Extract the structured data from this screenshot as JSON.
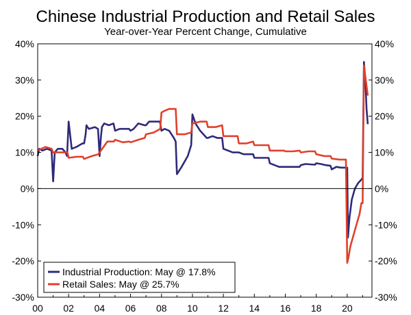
{
  "chart_data": {
    "type": "line",
    "title": "Chinese Industrial Production and Retail Sales",
    "subtitle": "Year-over-Year Percent Change, Cumulative",
    "xlabel": "",
    "ylabel": "",
    "xlim": [
      2000,
      2021.6
    ],
    "ylim": [
      -30,
      40
    ],
    "y_ticks": [
      40,
      30,
      20,
      10,
      0,
      -10,
      -20,
      -30
    ],
    "y_tick_labels": [
      "40%",
      "30%",
      "20%",
      "10%",
      "0%",
      "-10%",
      "-20%",
      "-30%"
    ],
    "x_ticks": [
      2000,
      2002,
      2004,
      2006,
      2008,
      2010,
      2012,
      2014,
      2016,
      2018,
      2020
    ],
    "x_tick_labels": [
      "00",
      "02",
      "04",
      "06",
      "08",
      "10",
      "12",
      "14",
      "16",
      "18",
      "20"
    ],
    "grid": false,
    "legend_position": "bottom-left",
    "series": [
      {
        "name": "Industrial Production",
        "legend_label": "Industrial Production: May @ 17.8%",
        "color": "#2e2a78",
        "x": [
          2000.0,
          2000.1,
          2000.3,
          2000.6,
          2000.9,
          2001.0,
          2001.1,
          2001.3,
          2001.6,
          2001.8,
          2001.9,
          2002.0,
          2002.2,
          2002.5,
          2002.9,
          2003.0,
          2003.1,
          2003.15,
          2003.3,
          2003.7,
          2003.9,
          2004.0,
          2004.08,
          2004.15,
          2004.3,
          2004.6,
          2004.9,
          2005.0,
          2005.3,
          2005.6,
          2005.9,
          2006.0,
          2006.2,
          2006.5,
          2006.9,
          2007.0,
          2007.2,
          2007.5,
          2007.9,
          2008.0,
          2008.2,
          2008.5,
          2008.8,
          2008.92,
          2009.0,
          2009.3,
          2009.7,
          2009.92,
          2010.0,
          2010.2,
          2010.5,
          2010.92,
          2011.0,
          2011.3,
          2011.6,
          2011.92,
          2012.0,
          2012.3,
          2012.6,
          2012.92,
          2013.0,
          2013.3,
          2013.6,
          2013.92,
          2014.0,
          2014.3,
          2014.6,
          2014.92,
          2015.0,
          2015.3,
          2015.6,
          2015.92,
          2016.0,
          2016.3,
          2016.6,
          2016.92,
          2017.0,
          2017.3,
          2017.6,
          2017.92,
          2018.0,
          2018.3,
          2018.6,
          2018.92,
          2019.0,
          2019.3,
          2019.6,
          2019.92,
          2020.0,
          2020.05,
          2020.15,
          2020.3,
          2020.5,
          2020.7,
          2020.92,
          2021.0,
          2021.08,
          2021.17,
          2021.25,
          2021.33
        ],
        "values": [
          9.0,
          11.0,
          10.5,
          11.0,
          10.5,
          2.0,
          10.0,
          11.0,
          11.0,
          10.0,
          9.0,
          18.5,
          11.0,
          11.5,
          12.5,
          12.5,
          15.0,
          17.5,
          16.5,
          17.0,
          16.5,
          9.0,
          14.0,
          17.0,
          18.0,
          17.5,
          18.0,
          16.0,
          16.5,
          16.5,
          16.5,
          16.0,
          16.5,
          18.0,
          17.5,
          17.5,
          18.5,
          18.5,
          18.5,
          16.0,
          16.5,
          16.0,
          14.0,
          13.0,
          4.0,
          6.0,
          9.0,
          12.0,
          20.5,
          18.0,
          16.0,
          14.0,
          14.0,
          14.5,
          14.0,
          14.0,
          11.0,
          10.5,
          10.0,
          10.0,
          10.0,
          9.5,
          9.5,
          9.5,
          8.5,
          8.5,
          8.5,
          8.5,
          7.0,
          6.5,
          6.0,
          6.0,
          6.0,
          6.0,
          6.0,
          6.0,
          6.5,
          6.8,
          6.7,
          6.6,
          7.0,
          6.8,
          6.5,
          6.3,
          5.3,
          6.0,
          5.8,
          5.8,
          5.8,
          -13.5,
          -8.0,
          -3.0,
          0.0,
          1.5,
          2.5,
          3.0,
          35.0,
          30.0,
          22.0,
          17.8
        ]
      },
      {
        "name": "Retail Sales",
        "legend_label": "Retail Sales: May @ 25.7%",
        "color": "#e0402a",
        "x": [
          2000.0,
          2000.5,
          2000.9,
          2001.0,
          2001.5,
          2001.92,
          2002.0,
          2002.5,
          2002.92,
          2003.0,
          2003.5,
          2003.92,
          2004.0,
          2004.5,
          2004.92,
          2005.0,
          2005.5,
          2005.92,
          2006.0,
          2006.5,
          2006.92,
          2007.0,
          2007.5,
          2007.92,
          2008.0,
          2008.2,
          2008.5,
          2008.92,
          2009.0,
          2009.5,
          2009.92,
          2010.0,
          2010.5,
          2010.92,
          2011.0,
          2011.5,
          2011.92,
          2012.0,
          2012.5,
          2012.92,
          2013.0,
          2013.5,
          2013.92,
          2014.0,
          2014.5,
          2014.92,
          2015.0,
          2015.5,
          2015.92,
          2016.0,
          2016.5,
          2016.92,
          2017.0,
          2017.5,
          2017.92,
          2018.0,
          2018.5,
          2018.92,
          2019.0,
          2019.5,
          2019.92,
          2020.0,
          2020.08,
          2020.2,
          2020.5,
          2020.8,
          2020.92,
          2021.0,
          2021.08,
          2021.2,
          2021.33
        ],
        "values": [
          10.5,
          11.5,
          11.0,
          10.0,
          10.0,
          10.0,
          8.5,
          8.8,
          8.8,
          8.2,
          9.0,
          9.5,
          10.0,
          13.0,
          13.0,
          13.5,
          12.8,
          13.0,
          12.8,
          13.5,
          14.0,
          15.0,
          15.5,
          16.5,
          21.0,
          21.5,
          22.0,
          22.0,
          15.0,
          15.0,
          15.5,
          18.0,
          18.5,
          18.5,
          17.0,
          17.0,
          17.5,
          14.5,
          14.5,
          14.5,
          12.5,
          12.5,
          13.0,
          12.0,
          12.0,
          12.0,
          10.5,
          10.5,
          10.5,
          10.3,
          10.3,
          10.5,
          10.0,
          10.3,
          10.3,
          9.5,
          9.0,
          9.0,
          8.3,
          8.0,
          8.0,
          -20.5,
          -19.0,
          -16.0,
          -11.5,
          -7.0,
          -4.0,
          -4.0,
          34.0,
          30.0,
          25.7
        ]
      }
    ]
  }
}
